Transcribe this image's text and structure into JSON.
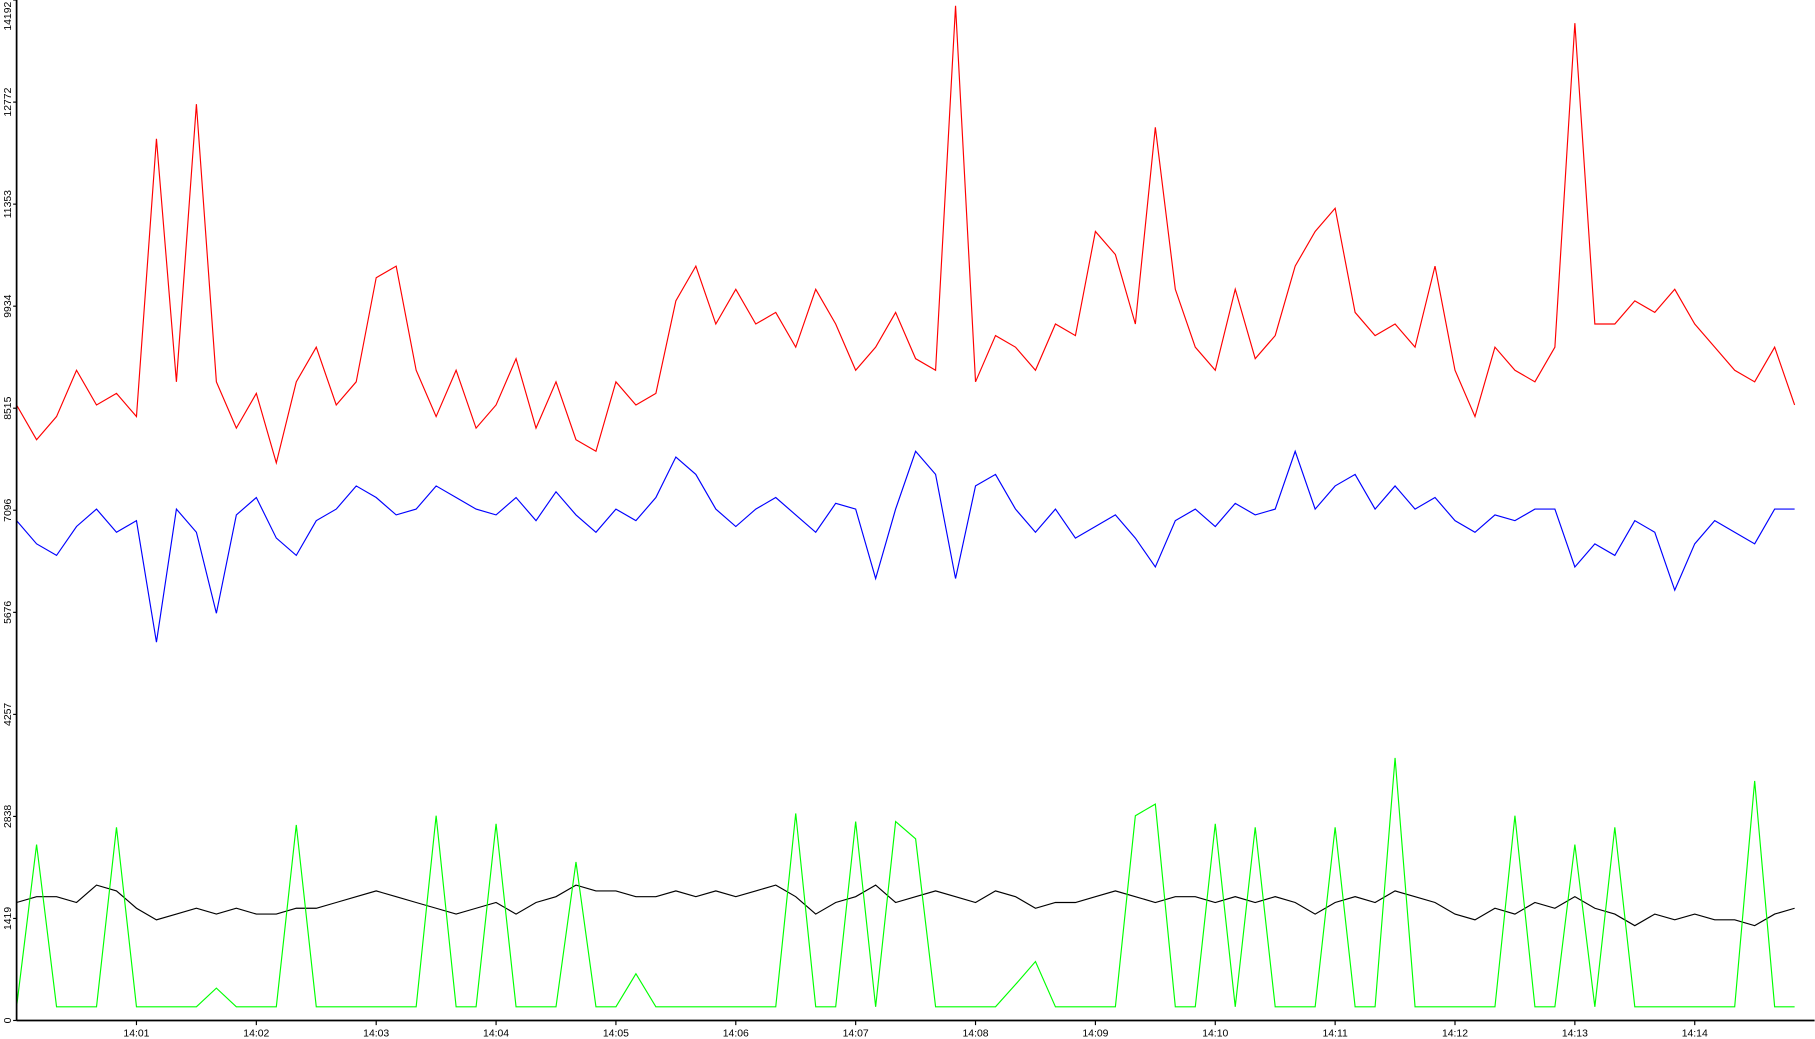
{
  "chart_data": {
    "type": "line",
    "categories": [
      null,
      null,
      null,
      null,
      null,
      null,
      "14:01",
      null,
      null,
      null,
      null,
      null,
      "14:02",
      null,
      null,
      null,
      null,
      null,
      "14:03",
      null,
      null,
      null,
      null,
      null,
      "14:04",
      null,
      null,
      null,
      null,
      null,
      "14:05",
      null,
      null,
      null,
      null,
      null,
      "14:06",
      null,
      null,
      null,
      null,
      null,
      "14:07",
      null,
      null,
      null,
      null,
      null,
      "14:08",
      null,
      null,
      null,
      null,
      null,
      "14:09",
      null,
      null,
      null,
      null,
      null,
      "14:10",
      null,
      null,
      null,
      null,
      null,
      "14:11",
      null,
      null,
      null,
      null,
      null,
      "14:12",
      null,
      null,
      null,
      null,
      null,
      "14:13",
      null,
      null,
      null,
      null,
      null,
      "14:14",
      null,
      null,
      null,
      null,
      null
    ],
    "series": [
      {
        "color": "#ff0000",
        "values": [
          8560,
          8077,
          8399,
          9043,
          8560,
          8721,
          8399,
          12261,
          8882,
          12743,
          8882,
          8238,
          8721,
          7755,
          8882,
          9364,
          8560,
          8882,
          10330,
          10491,
          9043,
          8399,
          9043,
          8238,
          8560,
          9204,
          8238,
          8882,
          8077,
          7916,
          8882,
          8560,
          8721,
          10008,
          10491,
          9686,
          10169,
          9686,
          9847,
          9364,
          10169,
          9686,
          9043,
          9364,
          9847,
          9204,
          9043,
          14111,
          8882,
          9525,
          9364,
          9043,
          9686,
          9525,
          10973,
          10652,
          9686,
          12421,
          10169,
          9364,
          9043,
          10169,
          9204,
          9525,
          10491,
          10973,
          11295,
          9847,
          9525,
          9686,
          9364,
          10491,
          9043,
          8399,
          9364,
          9043,
          8882,
          9364,
          13870,
          9686,
          9686,
          10008,
          9847,
          10169,
          9686,
          9364,
          9043,
          8882,
          9364,
          8560
        ]
      },
      {
        "color": "#0000ff",
        "values": [
          6951,
          6629,
          6468,
          6870,
          7112,
          6790,
          6951,
          5261,
          7112,
          6790,
          5664,
          7031,
          7273,
          6709,
          6468,
          6951,
          7112,
          7434,
          7273,
          7031,
          7112,
          7434,
          7273,
          7112,
          7031,
          7273,
          6951,
          7353,
          7031,
          6790,
          7112,
          6951,
          7273,
          7836,
          7594,
          7112,
          6870,
          7112,
          7273,
          7031,
          6790,
          7192,
          7112,
          6146,
          7112,
          7916,
          7594,
          6146,
          7434,
          7594,
          7112,
          6790,
          7112,
          6709,
          6870,
          7031,
          6709,
          6307,
          6951,
          7112,
          6870,
          7192,
          7031,
          7112,
          7916,
          7112,
          7434,
          7594,
          7112,
          7434,
          7112,
          7273,
          6951,
          6790,
          7031,
          6951,
          7112,
          7112,
          6307,
          6629,
          6468,
          6951,
          6790,
          5985,
          6629,
          6951,
          6790,
          6629,
          7112,
          7112
        ]
      },
      {
        "color": "#000000",
        "values": [
          1641,
          1722,
          1722,
          1641,
          1883,
          1802,
          1561,
          1400,
          1480,
          1561,
          1480,
          1561,
          1480,
          1480,
          1561,
          1561,
          1641,
          1722,
          1802,
          1722,
          1641,
          1561,
          1480,
          1561,
          1641,
          1480,
          1641,
          1722,
          1883,
          1802,
          1802,
          1722,
          1722,
          1802,
          1722,
          1802,
          1722,
          1802,
          1883,
          1722,
          1480,
          1641,
          1722,
          1883,
          1641,
          1722,
          1802,
          1722,
          1641,
          1802,
          1722,
          1561,
          1641,
          1641,
          1722,
          1802,
          1722,
          1641,
          1722,
          1722,
          1641,
          1722,
          1641,
          1722,
          1641,
          1480,
          1641,
          1722,
          1641,
          1802,
          1722,
          1641,
          1480,
          1400,
          1561,
          1480,
          1641,
          1561,
          1722,
          1561,
          1480,
          1319,
          1480,
          1400,
          1480,
          1400,
          1400,
          1319,
          1480,
          1561
        ]
      },
      {
        "color": "#00ff00",
        "values": [
          190,
          2446,
          190,
          190,
          190,
          2687,
          190,
          190,
          190,
          190,
          450,
          190,
          190,
          190,
          2719,
          190,
          190,
          190,
          190,
          190,
          190,
          2848,
          190,
          190,
          2735,
          190,
          190,
          190,
          2204,
          190,
          190,
          650,
          190,
          190,
          190,
          190,
          190,
          190,
          190,
          2880,
          190,
          190,
          2767,
          190,
          2767,
          2526,
          190,
          190,
          190,
          190,
          500,
          820,
          190,
          190,
          190,
          190,
          2848,
          3009,
          190,
          190,
          2735,
          190,
          2687,
          190,
          190,
          190,
          2687,
          190,
          190,
          3652,
          190,
          190,
          190,
          190,
          190,
          2848,
          190,
          190,
          2446,
          190,
          2687,
          190,
          190,
          190,
          190,
          190,
          190,
          3331,
          190,
          190
        ]
      }
    ],
    "ylim": [
      0,
      14192
    ],
    "yticks": [
      0,
      1419,
      2838,
      4257,
      5676,
      7096,
      8515,
      9934,
      11353,
      12772,
      14192
    ]
  }
}
